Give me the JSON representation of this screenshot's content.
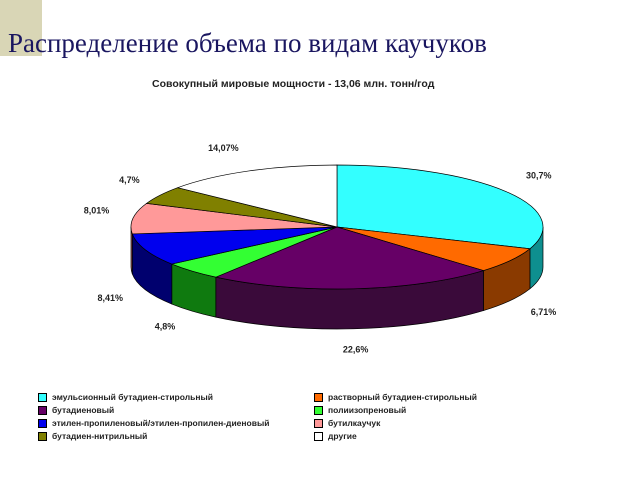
{
  "slide": {
    "title": "Распределение объема по видам каучуков"
  },
  "chart_data": {
    "type": "pie",
    "title": "Совокупный мировые мощности - 13,06 млн. тонн/год",
    "legend_position": "bottom",
    "slices": [
      {
        "name": "эмульсионный бутадиен-стирольный",
        "value": 30.7,
        "label": "30,7%",
        "color": "#33ffff",
        "side": "#0e8f8f"
      },
      {
        "name": "растворный бутадиен-стирольный",
        "value": 6.71,
        "label": "6,71%",
        "color": "#ff6a00",
        "side": "#8a3a00"
      },
      {
        "name": "бутадиеновый",
        "value": 22.6,
        "label": "22,6%",
        "color": "#660066",
        "side": "#3a0a3a"
      },
      {
        "name": "полиизопреновый",
        "value": 4.8,
        "label": "4,8%",
        "color": "#33ff33",
        "side": "#0f7a0f"
      },
      {
        "name": "этилен-пропиленовый/этилен-пропилен-диеновый",
        "value": 8.41,
        "label": "8,41%",
        "color": "#0000ee",
        "side": "#00006e"
      },
      {
        "name": "бутилкаучук",
        "value": 8.01,
        "label": "8,01%",
        "color": "#ff9999",
        "side": "#a05555"
      },
      {
        "name": "бутадиен-нитрильный",
        "value": 4.7,
        "label": "4,7%",
        "color": "#808000",
        "side": "#3f3f00"
      },
      {
        "name": "другие",
        "value": 14.07,
        "label": "14,07%",
        "color": "#ffffff",
        "side": "#bbbbbb"
      }
    ],
    "legend": [
      "эмульсионный бутадиен-стирольный",
      "растворный бутадиен-стирольный",
      "бутадиеновый",
      "полиизопреновый",
      "этилен-пропиленовый/этилен-пропилен-диеновый",
      "бутилкаучук",
      "бутадиен-нитрильный",
      "другие"
    ]
  }
}
